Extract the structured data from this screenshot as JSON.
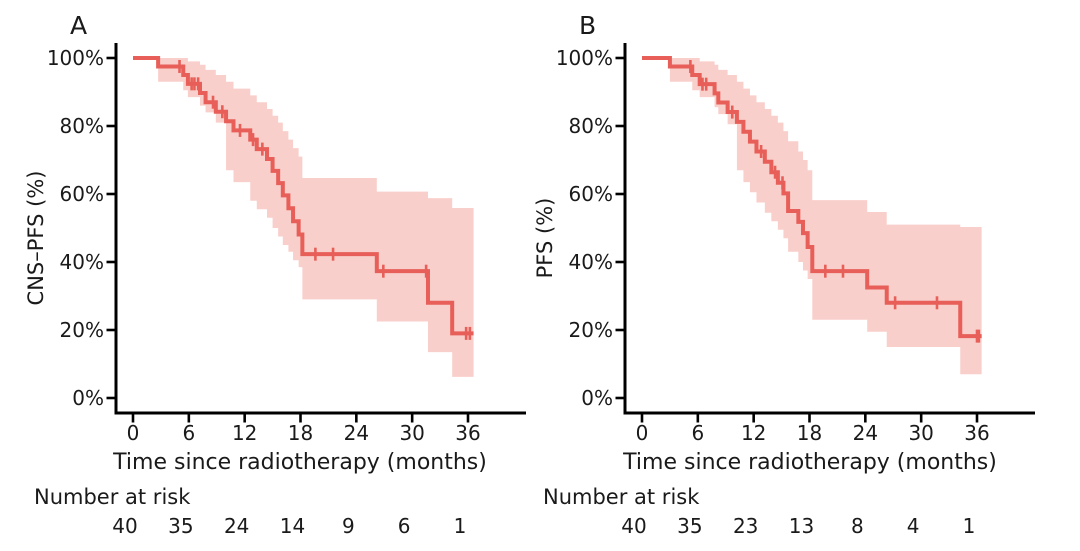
{
  "figure": {
    "colors": {
      "curve_line": "#e75f58",
      "confidence_band": "#f9cfcb",
      "axis": "#000000",
      "text": "#1a1a1a"
    },
    "panels": [
      {
        "label": "A",
        "ylabel": "CNS–PFS (%)",
        "xlabel": "Time since radiotherapy (months)",
        "risk_header": "Number at risk"
      },
      {
        "label": "B",
        "ylabel": "PFS (%)",
        "xlabel": "Time since radiotherapy (months)",
        "risk_header": "Number at risk"
      }
    ]
  },
  "chart_data": [
    {
      "type": "line",
      "subtype": "kaplan-meier-step-with-confidence-band",
      "panel": "A",
      "title": "A",
      "ylabel": "CNS–PFS (%)",
      "xlabel": "Time since radiotherapy (months)",
      "x_ticks": [
        0,
        6,
        12,
        18,
        24,
        30,
        36
      ],
      "y_tick_values": [
        100,
        80,
        60,
        40,
        20,
        0
      ],
      "y_tick_labels": [
        "100%",
        "80%",
        "60%",
        "40%",
        "20%",
        "0%"
      ],
      "xlim_months": [
        0,
        42
      ],
      "ylim_percent": [
        0,
        100
      ],
      "t_end": 36.6,
      "steps": [
        {
          "t": 0,
          "s": 100,
          "lo": 100,
          "hi": 100
        },
        {
          "t": 2.7,
          "s": 97.5,
          "lo": 93,
          "hi": 100
        },
        {
          "t": 5.4,
          "s": 95,
          "lo": 90.5,
          "hi": 100
        },
        {
          "t": 5.9,
          "s": 92.4,
          "lo": 88.5,
          "hi": 99
        },
        {
          "t": 7.2,
          "s": 89.7,
          "lo": 86,
          "hi": 98
        },
        {
          "t": 7.8,
          "s": 87,
          "lo": 84,
          "hi": 96.5
        },
        {
          "t": 8.9,
          "s": 84.2,
          "lo": 81,
          "hi": 95
        },
        {
          "t": 10.0,
          "s": 81.4,
          "lo": 67,
          "hi": 93
        },
        {
          "t": 10.8,
          "s": 78.7,
          "lo": 63.5,
          "hi": 91
        },
        {
          "t": 12.6,
          "s": 76,
          "lo": 58,
          "hi": 89
        },
        {
          "t": 13.3,
          "s": 73.2,
          "lo": 55.5,
          "hi": 87
        },
        {
          "t": 14.4,
          "s": 70.3,
          "lo": 53,
          "hi": 85
        },
        {
          "t": 15.0,
          "s": 66.8,
          "lo": 50,
          "hi": 83
        },
        {
          "t": 15.6,
          "s": 63.2,
          "lo": 47.5,
          "hi": 81
        },
        {
          "t": 16.1,
          "s": 59.6,
          "lo": 45,
          "hi": 78.5
        },
        {
          "t": 16.7,
          "s": 55.8,
          "lo": 43,
          "hi": 76
        },
        {
          "t": 17.2,
          "s": 52,
          "lo": 40.5,
          "hi": 73.5
        },
        {
          "t": 17.8,
          "s": 48.1,
          "lo": 38.5,
          "hi": 71
        },
        {
          "t": 18.2,
          "s": 42.3,
          "lo": 29,
          "hi": 64.7
        },
        {
          "t": 26.2,
          "s": 37.3,
          "lo": 22.5,
          "hi": 60.7
        },
        {
          "t": 31.7,
          "s": 28,
          "lo": 13.5,
          "hi": 58.8
        },
        {
          "t": 34.3,
          "s": 19,
          "lo": 6.2,
          "hi": 55.9
        }
      ],
      "censors": [
        {
          "t": 5.0,
          "s": 97.5
        },
        {
          "t": 6.3,
          "s": 92.4
        },
        {
          "t": 6.6,
          "s": 92.4
        },
        {
          "t": 7.0,
          "s": 92.4
        },
        {
          "t": 8.6,
          "s": 87
        },
        {
          "t": 9.6,
          "s": 84.2
        },
        {
          "t": 11.5,
          "s": 78.7
        },
        {
          "t": 12.9,
          "s": 76
        },
        {
          "t": 13.9,
          "s": 73.2
        },
        {
          "t": 19.6,
          "s": 42.3
        },
        {
          "t": 21.5,
          "s": 42.3
        },
        {
          "t": 26.9,
          "s": 37.3
        },
        {
          "t": 31.5,
          "s": 37.3
        },
        {
          "t": 35.8,
          "s": 19
        },
        {
          "t": 36.2,
          "s": 19
        }
      ],
      "number_at_risk": {
        "times": [
          0,
          6,
          12,
          18,
          24,
          30,
          36
        ],
        "counts": [
          40,
          35,
          24,
          14,
          9,
          6,
          1
        ]
      }
    },
    {
      "type": "line",
      "subtype": "kaplan-meier-step-with-confidence-band",
      "panel": "B",
      "title": "B",
      "ylabel": "PFS (%)",
      "xlabel": "Time since radiotherapy (months)",
      "x_ticks": [
        0,
        6,
        12,
        18,
        24,
        30,
        36
      ],
      "y_tick_values": [
        100,
        80,
        60,
        40,
        20,
        0
      ],
      "y_tick_labels": [
        "100%",
        "80%",
        "60%",
        "40%",
        "20%",
        "0%"
      ],
      "xlim_months": [
        0,
        42
      ],
      "ylim_percent": [
        0,
        100
      ],
      "t_end": 36.5,
      "steps": [
        {
          "t": 0,
          "s": 100,
          "lo": 100,
          "hi": 100
        },
        {
          "t": 3.0,
          "s": 97.5,
          "lo": 93,
          "hi": 100
        },
        {
          "t": 5.4,
          "s": 95,
          "lo": 90.5,
          "hi": 100
        },
        {
          "t": 6.2,
          "s": 92.3,
          "lo": 88.5,
          "hi": 99
        },
        {
          "t": 7.8,
          "s": 89.6,
          "lo": 85.5,
          "hi": 98
        },
        {
          "t": 8.2,
          "s": 86.9,
          "lo": 83.5,
          "hi": 96.5
        },
        {
          "t": 9.2,
          "s": 84.1,
          "lo": 80.5,
          "hi": 95
        },
        {
          "t": 10.2,
          "s": 81.2,
          "lo": 67,
          "hi": 93
        },
        {
          "t": 10.9,
          "s": 78.3,
          "lo": 63.5,
          "hi": 91
        },
        {
          "t": 11.6,
          "s": 75.4,
          "lo": 60.5,
          "hi": 89
        },
        {
          "t": 12.3,
          "s": 72.5,
          "lo": 57.5,
          "hi": 87
        },
        {
          "t": 13.2,
          "s": 69.5,
          "lo": 54.5,
          "hi": 85
        },
        {
          "t": 13.9,
          "s": 66.4,
          "lo": 52,
          "hi": 83
        },
        {
          "t": 14.6,
          "s": 63.3,
          "lo": 49.5,
          "hi": 81
        },
        {
          "t": 15.2,
          "s": 60.2,
          "lo": 47,
          "hi": 78.5
        },
        {
          "t": 15.7,
          "s": 55,
          "lo": 43,
          "hi": 75.5
        },
        {
          "t": 16.8,
          "s": 51.8,
          "lo": 40,
          "hi": 72.5
        },
        {
          "t": 17.3,
          "s": 48.5,
          "lo": 37.5,
          "hi": 70
        },
        {
          "t": 17.8,
          "s": 44.4,
          "lo": 35,
          "hi": 67
        },
        {
          "t": 18.3,
          "s": 37.3,
          "lo": 23,
          "hi": 58.2
        },
        {
          "t": 24.2,
          "s": 32.5,
          "lo": 19.5,
          "hi": 54.7
        },
        {
          "t": 26.3,
          "s": 28,
          "lo": 15,
          "hi": 51
        },
        {
          "t": 34.2,
          "s": 18.2,
          "lo": 7,
          "hi": 50.3
        }
      ],
      "censors": [
        {
          "t": 5.2,
          "s": 97.5
        },
        {
          "t": 6.5,
          "s": 92.3
        },
        {
          "t": 6.9,
          "s": 92.3
        },
        {
          "t": 9.7,
          "s": 84.1
        },
        {
          "t": 12.8,
          "s": 72.5
        },
        {
          "t": 14.3,
          "s": 66.4
        },
        {
          "t": 15.1,
          "s": 63.3
        },
        {
          "t": 19.7,
          "s": 37.3
        },
        {
          "t": 21.6,
          "s": 37.3
        },
        {
          "t": 27.2,
          "s": 28
        },
        {
          "t": 31.7,
          "s": 28
        },
        {
          "t": 36.0,
          "s": 18.2
        },
        {
          "t": 36.2,
          "s": 18.2
        }
      ],
      "number_at_risk": {
        "times": [
          0,
          6,
          12,
          18,
          24,
          30,
          36
        ],
        "counts": [
          40,
          35,
          23,
          13,
          8,
          4,
          1
        ]
      }
    }
  ]
}
